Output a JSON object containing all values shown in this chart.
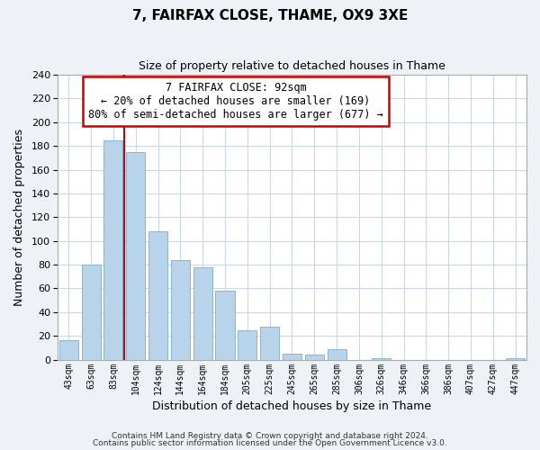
{
  "title": "7, FAIRFAX CLOSE, THAME, OX9 3XE",
  "subtitle": "Size of property relative to detached houses in Thame",
  "xlabel": "Distribution of detached houses by size in Thame",
  "ylabel": "Number of detached properties",
  "bar_labels": [
    "43sqm",
    "63sqm",
    "83sqm",
    "104sqm",
    "124sqm",
    "144sqm",
    "164sqm",
    "184sqm",
    "205sqm",
    "225sqm",
    "245sqm",
    "265sqm",
    "285sqm",
    "306sqm",
    "326sqm",
    "346sqm",
    "366sqm",
    "386sqm",
    "407sqm",
    "427sqm",
    "447sqm"
  ],
  "bar_values": [
    16,
    80,
    185,
    175,
    108,
    84,
    78,
    58,
    25,
    28,
    5,
    4,
    9,
    0,
    1,
    0,
    0,
    0,
    0,
    0,
    1
  ],
  "bar_color": "#b8d4ea",
  "bar_edge_color": "#8ab4d4",
  "vline_color": "#cc0000",
  "ylim": [
    0,
    240
  ],
  "yticks": [
    0,
    20,
    40,
    60,
    80,
    100,
    120,
    140,
    160,
    180,
    200,
    220,
    240
  ],
  "annotation_box_text_line1": "7 FAIRFAX CLOSE: 92sqm",
  "annotation_box_text_line2": "← 20% of detached houses are smaller (169)",
  "annotation_box_text_line3": "80% of semi-detached houses are larger (677) →",
  "footer_line1": "Contains HM Land Registry data © Crown copyright and database right 2024.",
  "footer_line2": "Contains public sector information licensed under the Open Government Licence v3.0.",
  "background_color": "#eef2f7",
  "plot_bg_color": "#ffffff",
  "grid_color": "#c8d8e8"
}
